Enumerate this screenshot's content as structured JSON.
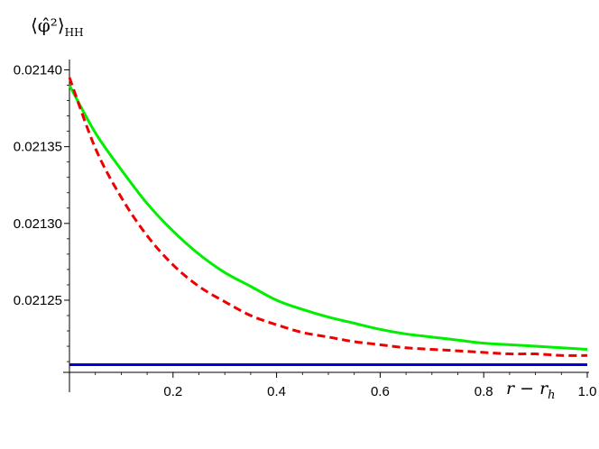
{
  "chart_data": {
    "type": "line",
    "title": "",
    "xlabel": "r − r_h",
    "ylabel": "⟨φ̂²⟩_HH",
    "xlabel_parts": {
      "main": "r − r",
      "sub": "h"
    },
    "ylabel_parts": {
      "main": "⟨φ̂²⟩",
      "sub": "HH"
    },
    "xlim": [
      0,
      1.0
    ],
    "ylim": [
      0.021203,
      0.021405
    ],
    "x_ticks": [
      0.2,
      0.4,
      0.6,
      0.8,
      1.0
    ],
    "x_tick_labels": [
      "0.2",
      "0.4",
      "0.6",
      "0.8",
      "1.0"
    ],
    "y_ticks": [
      0.02125,
      0.0213,
      0.02135,
      0.0214
    ],
    "y_tick_labels": [
      "0.02125",
      "0.02130",
      "0.02135",
      "0.02140"
    ],
    "grid": false,
    "legend": "none",
    "series": [
      {
        "color": "#00ee00",
        "dash": "solid",
        "x": [
          0,
          0.05,
          0.1,
          0.15,
          0.2,
          0.25,
          0.3,
          0.35,
          0.4,
          0.45,
          0.5,
          0.55,
          0.6,
          0.65,
          0.7,
          0.75,
          0.8,
          0.85,
          0.9,
          0.95,
          1.0
        ],
        "values": [
          0.02139,
          0.021359,
          0.021335,
          0.021313,
          0.021295,
          0.02128,
          0.021268,
          0.021259,
          0.02125,
          0.021244,
          0.021239,
          0.021235,
          0.021231,
          0.021228,
          0.021226,
          0.021224,
          0.021222,
          0.021221,
          0.02122,
          0.021219,
          0.021218
        ]
      },
      {
        "color": "#ee0000",
        "dash": "dashed",
        "x": [
          0,
          0.05,
          0.1,
          0.15,
          0.2,
          0.25,
          0.3,
          0.35,
          0.4,
          0.45,
          0.5,
          0.55,
          0.6,
          0.65,
          0.7,
          0.75,
          0.8,
          0.85,
          0.9,
          0.95,
          1.0
        ],
        "values": [
          0.021395,
          0.021349,
          0.021317,
          0.021292,
          0.021273,
          0.021259,
          0.021249,
          0.02124,
          0.021234,
          0.021229,
          0.021226,
          0.021223,
          0.021221,
          0.021219,
          0.021218,
          0.021217,
          0.021216,
          0.021215,
          0.021215,
          0.021214,
          0.021214
        ]
      },
      {
        "color": "#0000dd",
        "dash": "solid",
        "x": [
          0,
          1.0
        ],
        "values": [
          0.021208,
          0.021208
        ]
      }
    ]
  }
}
